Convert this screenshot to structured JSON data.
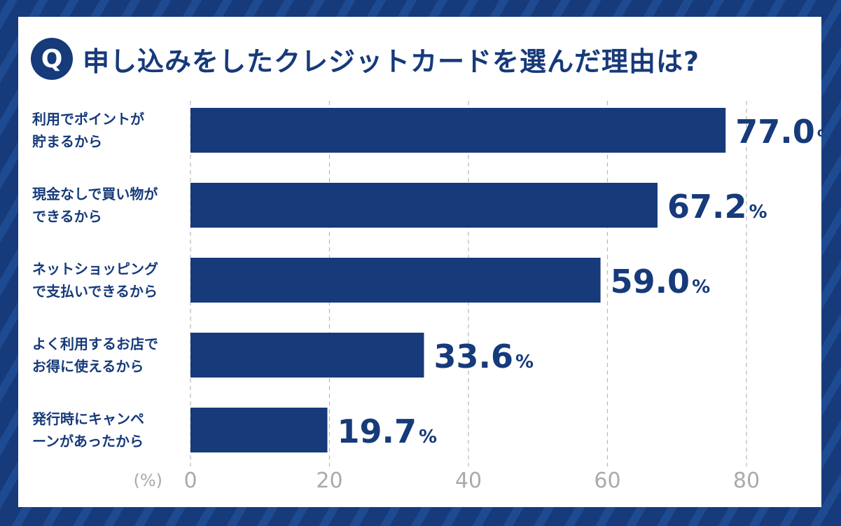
{
  "title": {
    "badge": "Q",
    "text": "申し込みをしたクレジットカードを選んだ理由は?"
  },
  "colors": {
    "navy": "#163a7a",
    "grid": "#b9b9b9",
    "axis_text": "#aaaaaa"
  },
  "chart_data": {
    "type": "bar",
    "orientation": "horizontal",
    "categories": [
      "利用でポイントが\n貯まるから",
      "現金なしで買い物が\nできるから",
      "ネットショッピング\nで支払いできるから",
      "よく利用するお店で\nお得に使えるから",
      "発行時にキャンペ\nーンがあったから"
    ],
    "values": [
      77.0,
      67.2,
      59.0,
      33.6,
      19.7
    ],
    "value_labels": [
      "77.0",
      "67.2",
      "59.0",
      "33.6",
      "19.7"
    ],
    "value_unit": "%",
    "xlim": [
      0,
      80
    ],
    "xticks": [
      0,
      20,
      40,
      60,
      80
    ],
    "unit_label": "(%)",
    "grid": true
  }
}
